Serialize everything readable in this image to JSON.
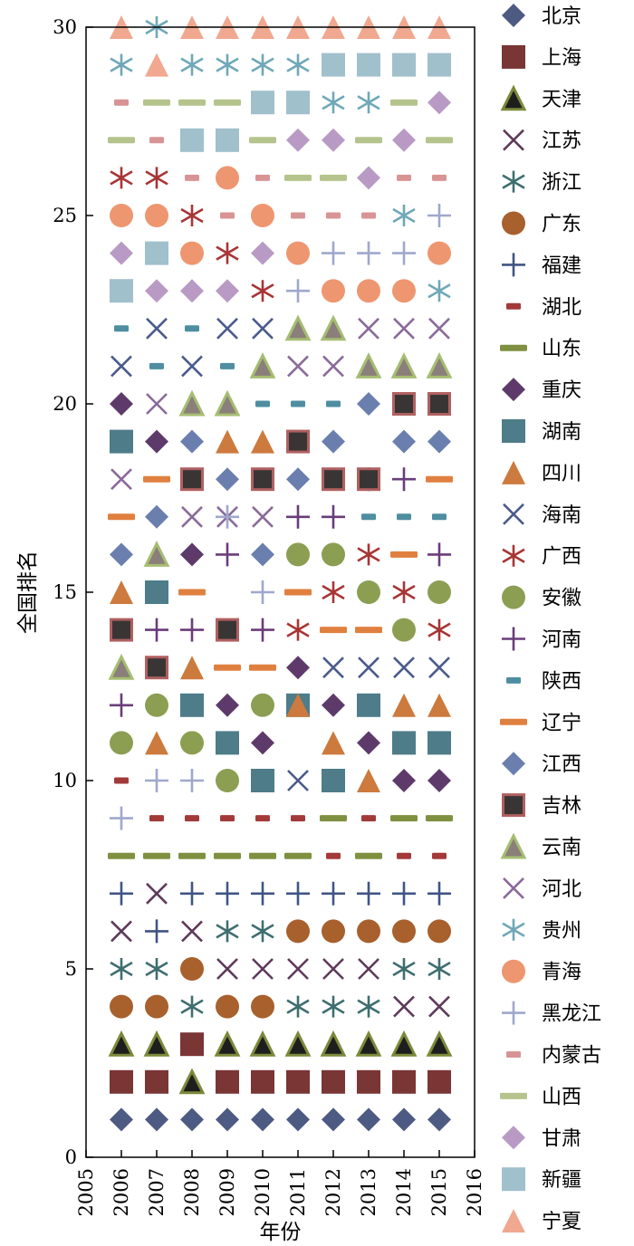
{
  "chart_data": {
    "type": "scatter",
    "title": "",
    "xlabel": "年份",
    "ylabel": "全国排名",
    "xlim": [
      2005,
      2016
    ],
    "ylim": [
      0,
      30
    ],
    "xticks": [
      2005,
      2006,
      2007,
      2008,
      2009,
      2010,
      2011,
      2012,
      2013,
      2014,
      2015,
      2016
    ],
    "yticks": [
      0,
      5,
      10,
      15,
      20,
      25,
      30
    ],
    "x": [
      2006,
      2007,
      2008,
      2009,
      2010,
      2011,
      2012,
      2013,
      2014,
      2015
    ],
    "grid": false,
    "legend_position": "outside-right",
    "series": [
      {
        "name": "北京",
        "marker": "diamond",
        "color": "#4d5a82",
        "values": [
          1,
          1,
          1,
          1,
          1,
          1,
          1,
          1,
          1,
          1
        ]
      },
      {
        "name": "上海",
        "marker": "square",
        "color": "#7a3535",
        "values": [
          2,
          2,
          3,
          2,
          2,
          2,
          2,
          2,
          2,
          2
        ]
      },
      {
        "name": "天津",
        "marker": "triangle-dark",
        "color": "#1e1e1e",
        "edge": "#7b8a3a",
        "values": [
          3,
          3,
          2,
          3,
          3,
          3,
          3,
          3,
          3,
          3
        ]
      },
      {
        "name": "江苏",
        "marker": "x",
        "color": "#5e3a5a",
        "values": [
          6,
          7,
          6,
          5,
          5,
          5,
          5,
          5,
          4,
          4
        ]
      },
      {
        "name": "浙江",
        "marker": "asterisk",
        "color": "#3f6e70",
        "values": [
          5,
          5,
          4,
          6,
          6,
          4,
          4,
          4,
          5,
          5
        ]
      },
      {
        "name": "广东",
        "marker": "circle",
        "color": "#a8602d",
        "values": [
          4,
          4,
          5,
          4,
          4,
          6,
          6,
          6,
          6,
          6
        ]
      },
      {
        "name": "福建",
        "marker": "plus",
        "color": "#405585",
        "values": [
          7,
          6,
          7,
          7,
          7,
          7,
          7,
          7,
          7,
          7
        ]
      },
      {
        "name": "湖北",
        "marker": "dash-short",
        "color": "#a33a3a",
        "values": [
          10,
          9,
          9,
          9,
          9,
          9,
          8,
          9,
          8,
          8
        ]
      },
      {
        "name": "山东",
        "marker": "dash",
        "color": "#7f9040",
        "values": [
          8,
          8,
          8,
          8,
          8,
          8,
          9,
          8,
          9,
          9
        ]
      },
      {
        "name": "重庆",
        "marker": "diamond",
        "color": "#5e3a6b",
        "values": [
          20,
          19,
          16,
          12,
          11,
          13,
          12,
          11,
          10,
          10
        ]
      },
      {
        "name": "湖南",
        "marker": "square",
        "color": "#4e7c89",
        "values": [
          19,
          15,
          12,
          11,
          10,
          12,
          10,
          12,
          11,
          11
        ]
      },
      {
        "name": "四川",
        "marker": "triangle",
        "color": "#cc7a3d",
        "values": [
          15,
          11,
          13,
          19,
          19,
          12,
          11,
          10,
          12,
          12
        ]
      },
      {
        "name": "海南",
        "marker": "x",
        "color": "#4a5b8c",
        "values": [
          21,
          22,
          21,
          22,
          22,
          10,
          13,
          13,
          13,
          13
        ]
      },
      {
        "name": "广西",
        "marker": "asterisk",
        "color": "#a83535",
        "values": [
          26,
          26,
          25,
          24,
          23,
          14,
          15,
          16,
          15,
          14
        ]
      },
      {
        "name": "安徽",
        "marker": "circle",
        "color": "#8c9e52",
        "values": [
          11,
          12,
          11,
          10,
          12,
          16,
          16,
          15,
          14,
          15
        ]
      },
      {
        "name": "河南",
        "marker": "plus",
        "color": "#6a3d7a",
        "values": [
          12,
          14,
          14,
          16,
          14,
          17,
          17,
          18,
          18,
          16
        ]
      },
      {
        "name": "陕西",
        "marker": "dash-short",
        "color": "#4e8ea0",
        "values": [
          22,
          21,
          22,
          21,
          20,
          20,
          20,
          17,
          17,
          17
        ]
      },
      {
        "name": "辽宁",
        "marker": "dash",
        "color": "#e08040",
        "values": [
          17,
          18,
          15,
          13,
          13,
          15,
          14,
          14,
          16,
          18
        ]
      },
      {
        "name": "江西",
        "marker": "diamond",
        "color": "#6a7fae",
        "values": [
          16,
          17,
          19,
          18,
          16,
          18,
          19,
          20,
          19,
          19
        ]
      },
      {
        "name": "吉林",
        "marker": "square-dark",
        "color": "#3a3535",
        "edge": "#b06060",
        "values": [
          14,
          13,
          18,
          14,
          18,
          19,
          18,
          18,
          20,
          20
        ]
      },
      {
        "name": "云南",
        "marker": "triangle-gray",
        "color": "#8a7f7a",
        "edge": "#a6bd72",
        "values": [
          13,
          16,
          20,
          20,
          21,
          22,
          22,
          21,
          21,
          21
        ]
      },
      {
        "name": "河北",
        "marker": "x",
        "color": "#8a6a9a",
        "values": [
          18,
          20,
          17,
          17,
          17,
          21,
          21,
          22,
          22,
          22
        ]
      },
      {
        "name": "贵州",
        "marker": "asterisk",
        "color": "#6fa8b8",
        "values": [
          29,
          30,
          29,
          29,
          29,
          29,
          28,
          28,
          25,
          23
        ]
      },
      {
        "name": "青海",
        "marker": "circle",
        "color": "#ee9670",
        "values": [
          25,
          25,
          24,
          26,
          25,
          24,
          23,
          23,
          23,
          24
        ]
      },
      {
        "name": "黑龙江",
        "marker": "plus",
        "color": "#9fa8cc",
        "values": [
          9,
          10,
          10,
          17,
          15,
          23,
          24,
          24,
          24,
          25
        ]
      },
      {
        "name": "内蒙古",
        "marker": "dash-short",
        "color": "#d89494",
        "values": [
          28,
          27,
          26,
          25,
          26,
          25,
          25,
          25,
          26,
          26
        ]
      },
      {
        "name": "山西",
        "marker": "dash",
        "color": "#b5c48c",
        "values": [
          27,
          28,
          28,
          28,
          27,
          26,
          26,
          27,
          28,
          27
        ]
      },
      {
        "name": "甘肃",
        "marker": "diamond",
        "color": "#b89ac4",
        "values": [
          24,
          23,
          23,
          23,
          24,
          27,
          27,
          26,
          27,
          28
        ]
      },
      {
        "name": "新疆",
        "marker": "square",
        "color": "#a0c0cc",
        "values": [
          23,
          24,
          27,
          27,
          28,
          28,
          29,
          29,
          29,
          29
        ]
      },
      {
        "name": "宁夏",
        "marker": "triangle",
        "color": "#f0a890",
        "values": [
          30,
          29,
          30,
          30,
          30,
          30,
          30,
          30,
          30,
          30
        ]
      }
    ]
  }
}
